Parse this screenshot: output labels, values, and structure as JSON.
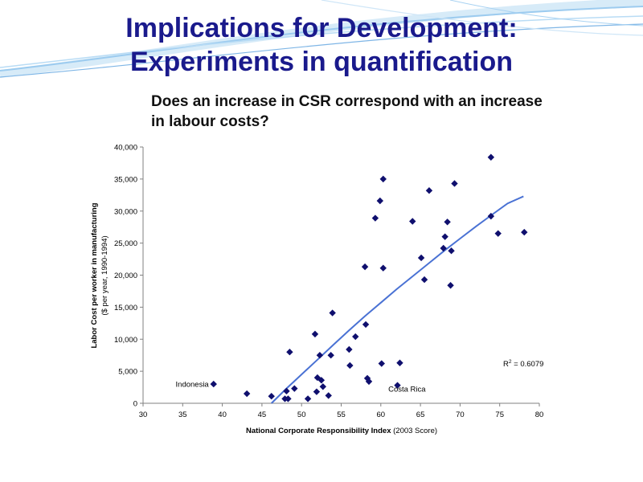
{
  "slide": {
    "title_line1": "Implications for Development:",
    "title_line2": "Experiments in quantification",
    "subtitle": "Does an increase in CSR correspond with an increase in labour costs?"
  },
  "colors": {
    "title": "#1a1a8c",
    "marker": "#0f0f6e",
    "trend": "#4a72d4",
    "swoosh": "#7fb6e6"
  },
  "chart_data": {
    "type": "scatter",
    "title": "",
    "xlabel": "National Corporate Responsibility Index",
    "xlabel_suffix": " (2003 Score)",
    "ylabel_line1": "Labor Cost per worker in manufacturing",
    "ylabel_line2": "($ per year, 1990-1994)",
    "xlim": [
      30,
      80
    ],
    "ylim": [
      0,
      40000
    ],
    "xticks": [
      "30",
      "35",
      "40",
      "45",
      "50",
      "55",
      "60",
      "65",
      "70",
      "75",
      "80"
    ],
    "yticks": [
      "0",
      "5,000",
      "10,000",
      "15,000",
      "20,000",
      "25,000",
      "30,000",
      "35,000",
      "40,000"
    ],
    "grid": false,
    "r2_label": "R",
    "r2_sup": "2",
    "r2_value": " = 0.6079",
    "annotations": [
      {
        "text": "Indonesia",
        "x": 36.2,
        "y": 2600
      },
      {
        "text": "Costa Rica",
        "x": 63.3,
        "y": 1800
      }
    ],
    "points": [
      [
        38.9,
        3000
      ],
      [
        43.1,
        1500
      ],
      [
        46.2,
        1100
      ],
      [
        47.9,
        700
      ],
      [
        48.1,
        1900
      ],
      [
        48.3,
        700
      ],
      [
        48.5,
        8000
      ],
      [
        49.1,
        2300
      ],
      [
        50.8,
        700
      ],
      [
        51.7,
        10800
      ],
      [
        51.9,
        1800
      ],
      [
        52.0,
        4000
      ],
      [
        52.3,
        7500
      ],
      [
        52.5,
        3600
      ],
      [
        52.7,
        2600
      ],
      [
        53.4,
        1200
      ],
      [
        53.7,
        7500
      ],
      [
        53.9,
        14100
      ],
      [
        56.0,
        8400
      ],
      [
        56.1,
        5900
      ],
      [
        56.8,
        10400
      ],
      [
        58.0,
        21300
      ],
      [
        58.1,
        12300
      ],
      [
        58.3,
        3900
      ],
      [
        58.5,
        3400
      ],
      [
        59.3,
        28900
      ],
      [
        59.9,
        31600
      ],
      [
        60.1,
        6200
      ],
      [
        60.3,
        35000
      ],
      [
        60.3,
        21100
      ],
      [
        62.1,
        2800
      ],
      [
        62.4,
        6300
      ],
      [
        64.0,
        28400
      ],
      [
        65.1,
        22700
      ],
      [
        65.5,
        19300
      ],
      [
        66.1,
        33200
      ],
      [
        67.9,
        24200
      ],
      [
        68.1,
        26000
      ],
      [
        68.4,
        28300
      ],
      [
        68.8,
        18400
      ],
      [
        68.9,
        23800
      ],
      [
        69.3,
        34300
      ],
      [
        73.9,
        38400
      ],
      [
        73.9,
        29200
      ],
      [
        74.8,
        26500
      ],
      [
        78.1,
        26700
      ]
    ],
    "trendline": [
      [
        46.2,
        0
      ],
      [
        48,
        2200
      ],
      [
        50,
        4500
      ],
      [
        52,
        6800
      ],
      [
        54,
        9100
      ],
      [
        56,
        11400
      ],
      [
        58,
        13600
      ],
      [
        60,
        15700
      ],
      [
        62,
        17800
      ],
      [
        64,
        19800
      ],
      [
        66,
        21800
      ],
      [
        68,
        23800
      ],
      [
        70,
        25700
      ],
      [
        72,
        27600
      ],
      [
        74,
        29400
      ],
      [
        76,
        31200
      ],
      [
        78,
        32300
      ]
    ]
  }
}
